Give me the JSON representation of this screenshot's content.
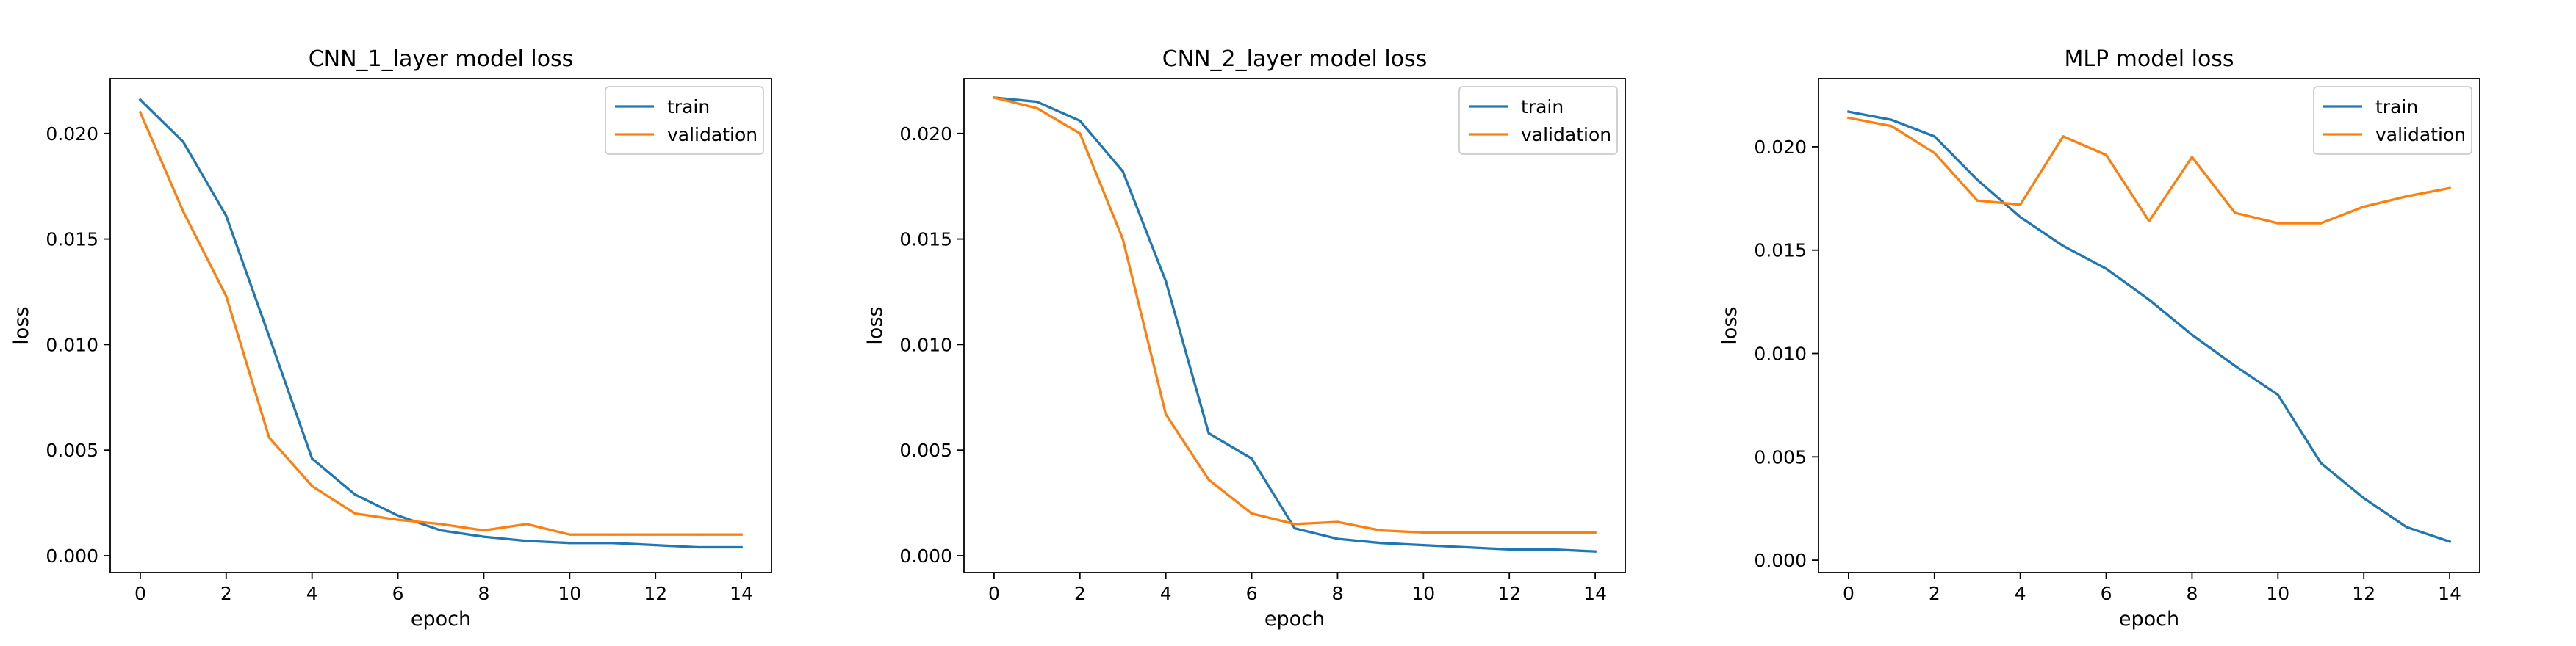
{
  "chart_data": [
    {
      "type": "line",
      "title": "CNN_1_layer model loss",
      "xlabel": "epoch",
      "ylabel": "loss",
      "xlim": [
        -0.7,
        14.7
      ],
      "ylim": [
        -0.0008,
        0.0226
      ],
      "xticks": [
        0,
        2,
        4,
        6,
        8,
        10,
        12,
        14
      ],
      "yticks": [
        0.0,
        0.005,
        0.01,
        0.015,
        0.02
      ],
      "ytick_labels": [
        "0.000",
        "0.005",
        "0.010",
        "0.015",
        "0.020"
      ],
      "legend": "upper right",
      "grid": false,
      "x": [
        0,
        1,
        2,
        3,
        4,
        5,
        6,
        7,
        8,
        9,
        10,
        11,
        12,
        13,
        14
      ],
      "series": [
        {
          "name": "train",
          "color": "#1f77b4",
          "values": [
            0.0216,
            0.0196,
            0.0161,
            0.0104,
            0.0046,
            0.0029,
            0.0019,
            0.0012,
            0.0009,
            0.0007,
            0.0006,
            0.0006,
            0.0005,
            0.0004,
            0.0004
          ]
        },
        {
          "name": "validation",
          "color": "#ff7f0e",
          "values": [
            0.021,
            0.0163,
            0.0123,
            0.0056,
            0.0033,
            0.002,
            0.0017,
            0.0015,
            0.0012,
            0.0015,
            0.001,
            0.001,
            0.001,
            0.001,
            0.001
          ]
        }
      ]
    },
    {
      "type": "line",
      "title": "CNN_2_layer model loss",
      "xlabel": "epoch",
      "ylabel": "loss",
      "xlim": [
        -0.7,
        14.7
      ],
      "ylim": [
        -0.0008,
        0.0226
      ],
      "xticks": [
        0,
        2,
        4,
        6,
        8,
        10,
        12,
        14
      ],
      "yticks": [
        0.0,
        0.005,
        0.01,
        0.015,
        0.02
      ],
      "ytick_labels": [
        "0.000",
        "0.005",
        "0.010",
        "0.015",
        "0.020"
      ],
      "legend": "upper right",
      "grid": false,
      "x": [
        0,
        1,
        2,
        3,
        4,
        5,
        6,
        7,
        8,
        9,
        10,
        11,
        12,
        13,
        14
      ],
      "series": [
        {
          "name": "train",
          "color": "#1f77b4",
          "values": [
            0.0217,
            0.0215,
            0.0206,
            0.0182,
            0.013,
            0.0058,
            0.0046,
            0.0013,
            0.0008,
            0.0006,
            0.0005,
            0.0004,
            0.0003,
            0.0003,
            0.0002
          ]
        },
        {
          "name": "validation",
          "color": "#ff7f0e",
          "values": [
            0.0217,
            0.0212,
            0.02,
            0.015,
            0.0067,
            0.0036,
            0.002,
            0.0015,
            0.0016,
            0.0012,
            0.0011,
            0.0011,
            0.0011,
            0.0011,
            0.0011
          ]
        }
      ]
    },
    {
      "type": "line",
      "title": "MLP model loss",
      "xlabel": "epoch",
      "ylabel": "loss",
      "xlim": [
        -0.7,
        14.7
      ],
      "ylim": [
        -0.0006,
        0.0233
      ],
      "xticks": [
        0,
        2,
        4,
        6,
        8,
        10,
        12,
        14
      ],
      "yticks": [
        0.0,
        0.005,
        0.01,
        0.015,
        0.02
      ],
      "ytick_labels": [
        "0.000",
        "0.005",
        "0.010",
        "0.015",
        "0.020"
      ],
      "legend": "upper right",
      "grid": false,
      "x": [
        0,
        1,
        2,
        3,
        4,
        5,
        6,
        7,
        8,
        9,
        10,
        11,
        12,
        13,
        14
      ],
      "series": [
        {
          "name": "train",
          "color": "#1f77b4",
          "values": [
            0.0217,
            0.0213,
            0.0205,
            0.0184,
            0.0166,
            0.0152,
            0.0141,
            0.0126,
            0.0109,
            0.0094,
            0.008,
            0.0047,
            0.003,
            0.0016,
            0.0009
          ]
        },
        {
          "name": "validation",
          "color": "#ff7f0e",
          "values": [
            0.0214,
            0.021,
            0.0197,
            0.0174,
            0.0172,
            0.0205,
            0.0196,
            0.0164,
            0.0195,
            0.0168,
            0.0163,
            0.0163,
            0.0171,
            0.0176,
            0.018
          ]
        }
      ]
    }
  ]
}
